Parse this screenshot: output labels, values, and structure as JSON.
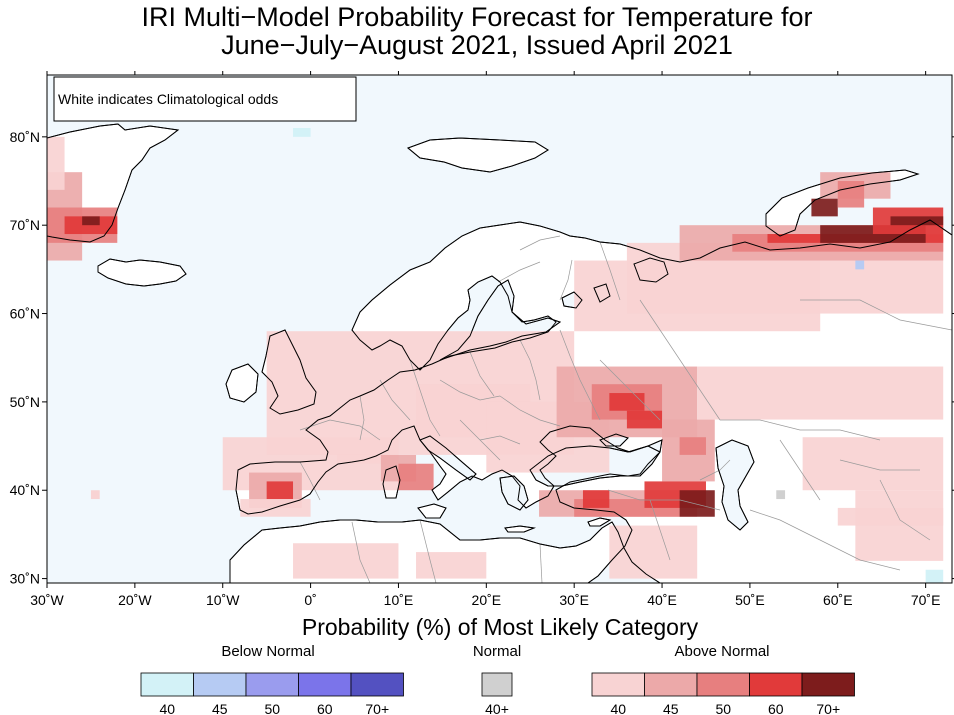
{
  "title": {
    "line1": "IRI Multi−Model Probability Forecast for Temperature for",
    "line2": "June−July−August 2021, Issued April 2021"
  },
  "map": {
    "note": "White indicates Climatological odds",
    "lat_labels": [
      "80˚N",
      "70˚N",
      "60˚N",
      "50˚N",
      "40˚N",
      "30˚N"
    ],
    "lon_labels": [
      "30˚W",
      "20˚W",
      "10˚W",
      "0˚",
      "10˚E",
      "20˚E",
      "30˚E",
      "40˚E",
      "50˚E",
      "60˚E",
      "70˚E"
    ],
    "lon_range": [
      -30,
      73
    ],
    "lat_range": [
      29.5,
      87
    ],
    "colors": {
      "ocean": "#f1f8fd",
      "land": "#ffffff",
      "border": "#9a9a9a",
      "coast": "#000000"
    }
  },
  "xlabel": "Probability (%) of Most Likely Category",
  "legend": {
    "below": {
      "title": "Below Normal",
      "bins": [
        {
          "label": "40",
          "color": "#d3f2f7"
        },
        {
          "label": "45",
          "color": "#b6cbf3"
        },
        {
          "label": "50",
          "color": "#9a9cee"
        },
        {
          "label": "60",
          "color": "#7b74ea"
        },
        {
          "label": "70+",
          "color": "#5351c1"
        }
      ]
    },
    "normal": {
      "title": "Normal",
      "bins": [
        {
          "label": "40+",
          "color": "#d0d0d0"
        }
      ]
    },
    "above": {
      "title": "Above Normal",
      "bins": [
        {
          "label": "40",
          "color": "#f8d3d3"
        },
        {
          "label": "45",
          "color": "#eca9a9"
        },
        {
          "label": "50",
          "color": "#e77f7f"
        },
        {
          "label": "60",
          "color": "#e13a3a"
        },
        {
          "label": "70+",
          "color": "#7d1c1c"
        }
      ]
    }
  }
}
